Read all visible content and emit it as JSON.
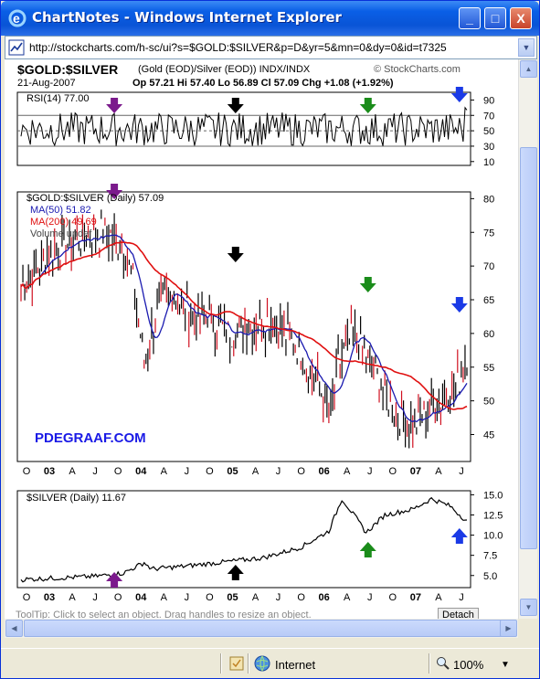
{
  "window": {
    "title": "ChartNotes - Windows Internet Explorer",
    "minimize_glyph": "_",
    "maximize_glyph": "□",
    "close_glyph": "X"
  },
  "address_bar": {
    "url": "http://stockcharts.com/h-sc/ui?s=$GOLD:$SILVER&p=D&yr=5&mn=0&dy=0&id=t7325"
  },
  "chart": {
    "symbol": "$GOLD:$SILVER",
    "description": "(Gold (EOD)/Silver (EOD))  INDX/INDX",
    "brand": "© StockCharts.com",
    "date": "21-Aug-2007",
    "quote": "Op 57.21  Hi 57.40  Lo 56.89  Cl 57.09  Chg +1.08 (+1.92%)",
    "rsi_label": "RSI(14) 77.00",
    "price_label": "$GOLD:$SILVER (Daily) 57.09",
    "ma50_label": "MA(50) 51.82",
    "ma200_label": "MA(200) 49.69",
    "volume_label": "Volume undef",
    "silver_label": "$SILVER (Daily) 11.67",
    "watermark": "PDEGRAAF.COM",
    "partial_text": "ToolTip: Click to select an object. Drag handles to resize an object.",
    "detach_label": "Detach"
  },
  "chart_data": [
    {
      "type": "line",
      "name": "rsi",
      "yticks": [
        10,
        30,
        50,
        70,
        90
      ],
      "ylim": [
        5,
        100
      ],
      "reference_lines": [
        30,
        50,
        70
      ],
      "title": "RSI(14) 77.00",
      "x_ticks": [
        "O",
        "03",
        "A",
        "J",
        "O",
        "04",
        "A",
        "J",
        "O",
        "05",
        "A",
        "J",
        "O",
        "06",
        "A",
        "J",
        "O",
        "07",
        "A",
        "J"
      ]
    },
    {
      "type": "line",
      "name": "price",
      "title": "$GOLD:$SILVER (Daily) 57.09",
      "yticks": [
        45,
        50,
        55,
        60,
        65,
        70,
        75,
        80
      ],
      "ylim": [
        41,
        81
      ],
      "series": [
        {
          "name": "MA(50) 51.82",
          "color": "#1a1ab0"
        },
        {
          "name": "MA(200) 49.69",
          "color": "#e01010"
        }
      ],
      "x_ticks": [
        "O",
        "03",
        "A",
        "J",
        "O",
        "04",
        "A",
        "J",
        "O",
        "05",
        "A",
        "J",
        "O",
        "06",
        "A",
        "J",
        "O",
        "07",
        "A",
        "J"
      ]
    },
    {
      "type": "line",
      "name": "silver",
      "title": "$SILVER (Daily) 11.67",
      "yticks": [
        5.0,
        7.5,
        10.0,
        12.5,
        15.0
      ],
      "ylim": [
        3.5,
        15.5
      ],
      "x_ticks": [
        "O",
        "03",
        "A",
        "J",
        "O",
        "04",
        "A",
        "J",
        "O",
        "05",
        "A",
        "J",
        "O",
        "06",
        "A",
        "J",
        "O",
        "07",
        "A",
        "J"
      ]
    }
  ],
  "arrows": [
    {
      "color": "#7b1a8c",
      "direction": "down",
      "panel": "rsi"
    },
    {
      "color": "#000000",
      "direction": "down",
      "panel": "rsi"
    },
    {
      "color": "#1a8c1a",
      "direction": "down",
      "panel": "rsi"
    },
    {
      "color": "#1a3ae6",
      "direction": "down",
      "panel": "rsi"
    },
    {
      "color": "#7b1a8c",
      "direction": "down",
      "panel": "price"
    },
    {
      "color": "#000000",
      "direction": "down",
      "panel": "price"
    },
    {
      "color": "#1a8c1a",
      "direction": "down",
      "panel": "price"
    },
    {
      "color": "#1a3ae6",
      "direction": "down",
      "panel": "price"
    },
    {
      "color": "#7b1a8c",
      "direction": "up",
      "panel": "silver"
    },
    {
      "color": "#000000",
      "direction": "up",
      "panel": "silver"
    },
    {
      "color": "#1a8c1a",
      "direction": "up",
      "panel": "silver"
    },
    {
      "color": "#1a3ae6",
      "direction": "up",
      "panel": "silver"
    }
  ],
  "status": {
    "zone": "Internet",
    "zoom": "100%"
  }
}
